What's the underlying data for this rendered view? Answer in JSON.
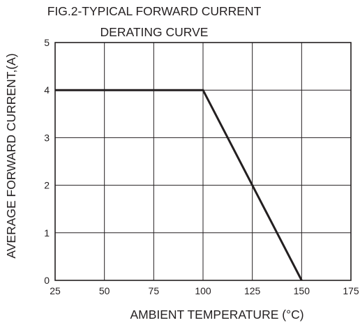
{
  "chart_data": {
    "type": "line",
    "title_line1": "FIG.2-TYPICAL FORWARD CURRENT",
    "title_line2": "DERATING CURVE",
    "xlabel": "AMBIENT TEMPERATURE (°C)",
    "ylabel": "AVERAGE FORWARD CURRENT,(A)",
    "xlim": [
      25,
      175
    ],
    "ylim": [
      0,
      5
    ],
    "xticks": [
      25,
      50,
      75,
      100,
      125,
      150,
      175
    ],
    "yticks": [
      0,
      1,
      2,
      3,
      4,
      5
    ],
    "grid": true,
    "series": [
      {
        "x": [
          25,
          100,
          150
        ],
        "y": [
          4,
          4,
          0
        ]
      }
    ]
  }
}
